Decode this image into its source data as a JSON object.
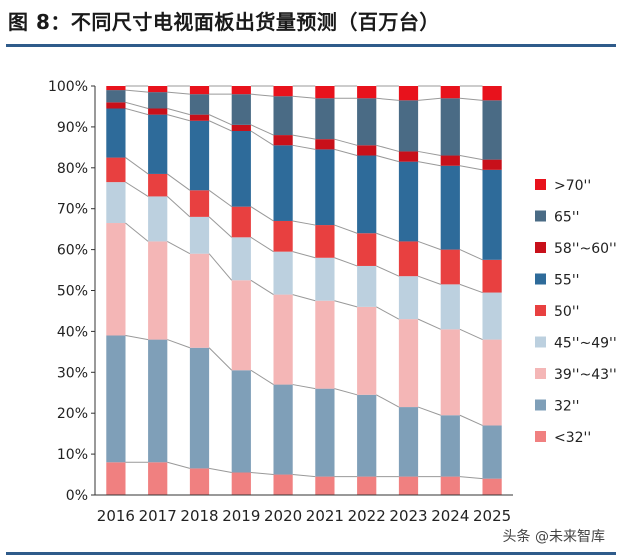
{
  "chart_data": {
    "type": "bar",
    "stacked": "percent",
    "title": "图 8：不同尺寸电视面板出货量预测（百万台）",
    "categories": [
      "2016",
      "2017",
      "2018",
      "2019",
      "2020",
      "2021",
      "2022",
      "2023",
      "2024",
      "2025"
    ],
    "ylim": [
      0,
      100
    ],
    "yticks": [
      "0%",
      "10%",
      "20%",
      "30%",
      "40%",
      "50%",
      "60%",
      "70%",
      "80%",
      "90%",
      "100%"
    ],
    "legend_position": "right",
    "series": [
      {
        "name": "<32''",
        "color": "#f08080",
        "values": [
          8,
          8,
          6.5,
          5.5,
          5,
          4.5,
          4.5,
          4.5,
          4.5,
          4
        ]
      },
      {
        "name": "32''",
        "color": "#7f9fb8",
        "values": [
          31,
          30,
          29.5,
          25,
          22,
          21.5,
          20,
          17,
          15,
          13
        ]
      },
      {
        "name": "39''~43''",
        "color": "#f4b6b6",
        "values": [
          27.5,
          24,
          23,
          22,
          22,
          21.5,
          21.5,
          21.5,
          21,
          21
        ]
      },
      {
        "name": "45''~49''",
        "color": "#bcd0df",
        "values": [
          10,
          11,
          9,
          10.5,
          10.5,
          10.5,
          10,
          10.5,
          11,
          11.5
        ]
      },
      {
        "name": "50''",
        "color": "#e84040",
        "values": [
          6,
          5.5,
          6.5,
          7.5,
          7.5,
          8,
          8,
          8.5,
          8.5,
          8
        ]
      },
      {
        "name": "55''",
        "color": "#2e6b9a",
        "values": [
          12,
          14.5,
          17,
          18.5,
          18.5,
          18.5,
          19,
          19.5,
          20.5,
          22
        ]
      },
      {
        "name": "58''~60''",
        "color": "#c8101a",
        "values": [
          1.5,
          1.5,
          1.5,
          1.5,
          2.5,
          2.5,
          2.5,
          2.5,
          2.5,
          2.5
        ]
      },
      {
        "name": "65''",
        "color": "#4a6b85",
        "values": [
          3,
          4,
          5,
          7.5,
          9.5,
          10,
          11.5,
          12.5,
          14,
          14.5
        ]
      },
      {
        "name": ">70''",
        "color": "#e8121c",
        "values": [
          1,
          1.5,
          2,
          2,
          2.5,
          3,
          3,
          3.5,
          3,
          3.5
        ]
      }
    ]
  },
  "watermark": "头条 @未来智库"
}
